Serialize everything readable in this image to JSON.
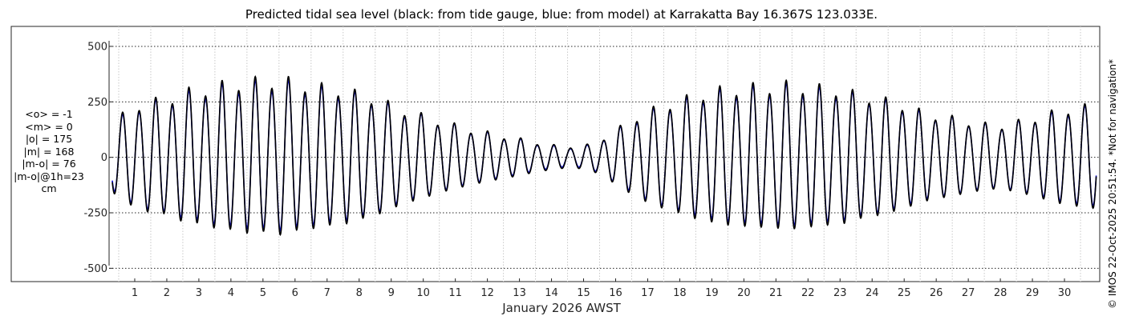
{
  "chart_data": {
    "type": "line",
    "title": "Predicted tidal sea level (black: from tide gauge, blue: from model) at Karrakatta Bay 16.367S 123.033E.",
    "xlabel": "January 2026 AWST",
    "ylabel": "",
    "x_ticks": [
      "1",
      "2",
      "3",
      "4",
      "5",
      "6",
      "7",
      "8",
      "9",
      "10",
      "11",
      "12",
      "13",
      "14",
      "15",
      "16",
      "17",
      "18",
      "19",
      "20",
      "21",
      "22",
      "23",
      "24",
      "25",
      "26",
      "27",
      "28",
      "29",
      "30"
    ],
    "y_ticks": [
      500,
      250,
      0,
      -250,
      -500
    ],
    "y_tick_labels": [
      "500",
      "250",
      "0",
      "-250",
      "-500"
    ],
    "xlim": [
      0.2,
      31.1
    ],
    "ylim": [
      -560,
      590
    ],
    "grid": true,
    "series": [
      {
        "name": "tide gauge",
        "color": "#000000",
        "x": [
          0.3,
          1.0,
          1.5,
          2.0,
          2.5,
          3.0,
          3.5,
          4.0,
          4.5,
          5.0,
          5.5,
          6.0,
          6.5,
          7.0,
          7.5,
          8.0,
          8.5,
          9.0,
          9.5,
          10.0,
          10.5,
          11.0,
          11.5,
          12.0,
          12.5,
          13.0,
          13.5,
          14.0,
          14.5,
          15.0,
          15.5,
          16.0,
          16.5,
          17.0,
          17.5,
          18.0,
          18.5,
          19.0,
          19.5,
          20.0,
          20.5,
          21.0,
          21.5,
          22.0,
          22.5,
          23.0,
          23.5,
          24.0,
          24.5,
          25.0,
          25.5,
          26.0,
          26.5,
          27.0,
          27.5,
          28.0,
          28.5,
          29.0,
          29.5,
          30.0,
          30.5,
          31.0
        ],
        "amplitude_envelope": [
          170,
          245,
          270,
          275,
          315,
          320,
          345,
          350,
          370,
          360,
          380,
          355,
          350,
          330,
          330,
          300,
          285,
          250,
          220,
          200,
          170,
          155,
          130,
          120,
          100,
          90,
          70,
          60,
          50,
          55,
          80,
          130,
          180,
          220,
          250,
          270,
          300,
          315,
          330,
          335,
          340,
          345,
          350,
          340,
          330,
          330,
          300,
          290,
          270,
          250,
          220,
          200,
          190,
          170,
          160,
          150,
          170,
          185,
          210,
          230,
          240,
          250
        ],
        "mean": -1
      },
      {
        "name": "model",
        "color": "#0000cc",
        "x": [
          0.3,
          1.0,
          1.5,
          2.0,
          2.5,
          3.0,
          3.5,
          4.0,
          4.5,
          5.0,
          5.5,
          6.0,
          6.5,
          7.0,
          7.5,
          8.0,
          8.5,
          9.0,
          9.5,
          10.0,
          10.5,
          11.0,
          11.5,
          12.0,
          12.5,
          13.0,
          13.5,
          14.0,
          14.5,
          15.0,
          15.5,
          16.0,
          16.5,
          17.0,
          17.5,
          18.0,
          18.5,
          19.0,
          19.5,
          20.0,
          20.5,
          21.0,
          21.5,
          22.0,
          22.5,
          23.0,
          23.5,
          24.0,
          24.5,
          25.0,
          25.5,
          26.0,
          26.5,
          27.0,
          27.5,
          28.0,
          28.5,
          29.0,
          29.5,
          30.0,
          30.5,
          31.0
        ],
        "amplitude_envelope": [
          160,
          235,
          260,
          265,
          300,
          305,
          330,
          335,
          350,
          345,
          360,
          340,
          335,
          315,
          315,
          290,
          275,
          240,
          210,
          195,
          165,
          150,
          125,
          115,
          95,
          85,
          65,
          55,
          45,
          50,
          75,
          125,
          170,
          210,
          240,
          260,
          285,
          300,
          315,
          320,
          325,
          330,
          335,
          325,
          315,
          315,
          290,
          280,
          260,
          240,
          210,
          195,
          185,
          165,
          155,
          145,
          165,
          180,
          200,
          220,
          230,
          240
        ],
        "mean": 0
      }
    ],
    "period_days": 0.5175
  },
  "stats": {
    "lines": [
      "<o> = -1",
      "<m> = 0",
      "|o| = 175",
      "|m| = 168",
      "|m-o| = 76",
      "|m-o|@1h=23",
      "cm"
    ]
  },
  "copyright": "© IMOS 22-Oct-2025 20:51:54. *Not for navigation*"
}
